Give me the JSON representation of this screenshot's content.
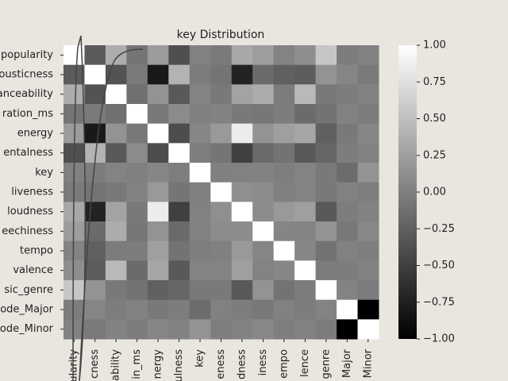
{
  "chart_data": {
    "type": "heatmap",
    "title": "key Distribution",
    "colormap": "gray",
    "background": "#e9e5df",
    "y_labels": [
      "popularity",
      "ousticness",
      "anceability",
      "ration_ms",
      "energy",
      "entalness",
      "key",
      "liveness",
      "loudness",
      "eechiness",
      "tempo",
      "valence",
      "sic_genre",
      "ode_Major",
      "ode_Minor"
    ],
    "x_labels": [
      "ularity",
      "cness",
      "ability",
      "in_ms",
      "nergy",
      "ulness",
      "key",
      "eness",
      "dness",
      "iness",
      "empo",
      "lence",
      "genre",
      "Major",
      "Minor"
    ],
    "values": [
      [
        1,
        -0.29,
        0.36,
        -0.08,
        0.22,
        -0.38,
        0.01,
        -0.04,
        0.32,
        0.23,
        0.03,
        0.11,
        0.55,
        -0.02,
        0.02
      ],
      [
        -0.29,
        1,
        -0.35,
        -0.04,
        -0.8,
        0.4,
        -0.03,
        -0.09,
        -0.73,
        -0.16,
        -0.25,
        -0.27,
        0.15,
        0.04,
        -0.04
      ],
      [
        0.36,
        -0.35,
        1,
        -0.12,
        0.15,
        -0.3,
        0.03,
        -0.05,
        0.28,
        0.35,
        -0.03,
        0.45,
        -0.05,
        -0.02,
        0.02
      ],
      [
        -0.08,
        -0.04,
        -0.12,
        1,
        -0.06,
        0.09,
        0,
        0.02,
        -0.05,
        -0.07,
        -0.02,
        -0.16,
        -0.1,
        0.02,
        -0.02
      ],
      [
        0.22,
        -0.8,
        0.15,
        -0.06,
        1,
        -0.4,
        0.05,
        0.2,
        0.85,
        0.15,
        0.25,
        0.3,
        -0.25,
        -0.05,
        0.05
      ],
      [
        -0.38,
        0.4,
        -0.3,
        0.09,
        -0.4,
        1,
        -0.01,
        -0.08,
        -0.5,
        -0.17,
        -0.1,
        -0.3,
        -0.2,
        -0.02,
        0.02
      ],
      [
        0.01,
        -0.03,
        0.03,
        0,
        0.05,
        -0.01,
        1,
        0,
        0.01,
        0.02,
        -0.01,
        0.03,
        -0.05,
        -0.15,
        0.15
      ],
      [
        -0.04,
        -0.09,
        -0.05,
        0.02,
        0.2,
        -0.08,
        0,
        1,
        0.12,
        0.1,
        0,
        0.03,
        -0.05,
        0.01,
        -0.01
      ],
      [
        0.32,
        -0.73,
        0.28,
        -0.05,
        0.85,
        -0.5,
        0.01,
        0.12,
        1,
        0.1,
        0.2,
        0.25,
        -0.3,
        -0.02,
        0.02
      ],
      [
        0.23,
        -0.16,
        0.35,
        -0.07,
        0.15,
        -0.17,
        0.02,
        0.1,
        0.1,
        1,
        0.04,
        0.03,
        0.15,
        -0.06,
        0.06
      ],
      [
        0.03,
        -0.25,
        -0.03,
        -0.02,
        0.25,
        -0.1,
        -0.01,
        0,
        0.2,
        0.04,
        1,
        0.05,
        -0.1,
        0.01,
        -0.01
      ],
      [
        0.11,
        -0.27,
        0.45,
        -0.16,
        0.3,
        -0.3,
        0.03,
        0.03,
        0.25,
        0.03,
        0.05,
        1,
        -0.03,
        -0.02,
        0.02
      ],
      [
        0.55,
        0.15,
        -0.05,
        -0.1,
        -0.25,
        -0.2,
        -0.05,
        -0.05,
        -0.3,
        0.15,
        -0.1,
        -0.03,
        1,
        0.03,
        -0.03
      ],
      [
        -0.02,
        0.04,
        -0.02,
        0.02,
        -0.05,
        -0.02,
        -0.15,
        0.01,
        -0.02,
        -0.06,
        0.01,
        -0.02,
        0.03,
        1,
        -1
      ],
      [
        0.02,
        -0.04,
        0.02,
        -0.02,
        0.05,
        0.02,
        0.15,
        -0.01,
        0.02,
        0.06,
        -0.01,
        0.02,
        -0.03,
        -1,
        1
      ]
    ],
    "clim": [
      -1,
      1
    ],
    "cticks": [
      {
        "value": 1,
        "label": "1.00"
      },
      {
        "value": 0.75,
        "label": "0.75"
      },
      {
        "value": 0.5,
        "label": "0.50"
      },
      {
        "value": 0.25,
        "label": "0.25"
      },
      {
        "value": 0,
        "label": "0.00"
      },
      {
        "value": -0.25,
        "label": "−0.25"
      },
      {
        "value": -0.5,
        "label": "−0.50"
      },
      {
        "value": -0.75,
        "label": "−0.75"
      },
      {
        "value": -1,
        "label": "−1.00"
      }
    ]
  }
}
